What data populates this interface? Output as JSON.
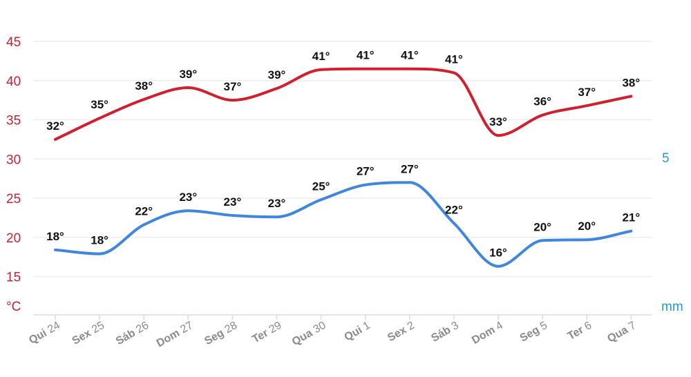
{
  "chart_data": {
    "type": "line",
    "categories": [
      {
        "day": "Qui",
        "num": "24"
      },
      {
        "day": "Sex",
        "num": "25"
      },
      {
        "day": "Sáb",
        "num": "26"
      },
      {
        "day": "Dom",
        "num": "27"
      },
      {
        "day": "Seg",
        "num": "28"
      },
      {
        "day": "Ter",
        "num": "29"
      },
      {
        "day": "Qua",
        "num": "30"
      },
      {
        "day": "Qui",
        "num": "1"
      },
      {
        "day": "Sex",
        "num": "2"
      },
      {
        "day": "Sáb",
        "num": "3"
      },
      {
        "day": "Dom",
        "num": "4"
      },
      {
        "day": "Seg",
        "num": "5"
      },
      {
        "day": "Ter",
        "num": "6"
      },
      {
        "day": "Qua",
        "num": "7"
      }
    ],
    "series": [
      {
        "color": "#d0202e",
        "values": [
          32.5,
          35.2,
          37.6,
          39.1,
          37.5,
          39.0,
          41.4,
          41.5,
          41.5,
          41.0,
          33.0,
          35.6,
          36.8,
          38.0
        ],
        "labels": [
          "32°",
          "35°",
          "38°",
          "39°",
          "37°",
          "39°",
          "41°",
          "41°",
          "41°",
          "41°",
          "33°",
          "36°",
          "37°",
          "38°"
        ]
      },
      {
        "color": "#3f86dc",
        "values": [
          18.4,
          17.9,
          21.6,
          23.4,
          22.8,
          22.6,
          24.8,
          26.7,
          27.0,
          21.8,
          16.3,
          19.6,
          19.7,
          20.8
        ],
        "labels": [
          "18°",
          "18°",
          "22°",
          "23°",
          "23°",
          "23°",
          "25°",
          "27°",
          "27°",
          "22°",
          "16°",
          "20°",
          "20°",
          "21°"
        ]
      }
    ],
    "y_left": {
      "ticks": [
        "45",
        "40",
        "35",
        "30",
        "25",
        "20",
        "15"
      ],
      "unit": "°C",
      "color": "#c8202f",
      "ylim": [
        11,
        45
      ]
    },
    "y_right": {
      "ticks": [
        "5"
      ],
      "unit": "mm",
      "color": "#2a98d0"
    },
    "grid": true
  }
}
